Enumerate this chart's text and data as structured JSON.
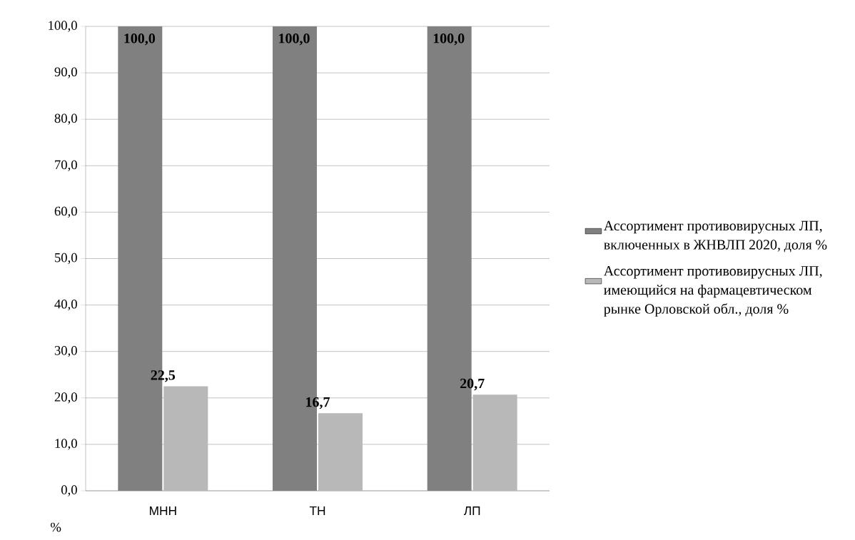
{
  "chart_data": {
    "type": "bar",
    "categories": [
      "МНН",
      "ТН",
      "ЛП"
    ],
    "ylabel": "%",
    "series": [
      {
        "name": "Ассортимент противовирусных ЛП, включенных в ЖНВЛП 2020, доля %",
        "color": "#808080",
        "values": [
          100.0,
          100.0,
          100.0
        ],
        "value_labels": [
          "100,0",
          "100,0",
          "100,0"
        ]
      },
      {
        "name": "Ассортимент противовирусных ЛП, имеющийся на фармацевтическом рынке Орловской обл., доля %",
        "color": "#b8b8b8",
        "values": [
          22.5,
          16.7,
          20.7
        ],
        "value_labels": [
          "22,5",
          "16,7",
          "20,7"
        ]
      }
    ],
    "ylim": [
      0,
      100
    ],
    "yticks": [
      {
        "value": 0,
        "label": "0,0"
      },
      {
        "value": 10,
        "label": "10,0"
      },
      {
        "value": 20,
        "label": "20,0"
      },
      {
        "value": 30,
        "label": "30,0"
      },
      {
        "value": 40,
        "label": "40,0"
      },
      {
        "value": 50,
        "label": "50,0"
      },
      {
        "value": 60,
        "label": "60,0"
      },
      {
        "value": 70,
        "label": "70,0"
      },
      {
        "value": 80,
        "label": "80,0"
      },
      {
        "value": 90,
        "label": "90,0"
      },
      {
        "value": 100,
        "label": "100,0"
      }
    ],
    "grid": "y",
    "legend": "right"
  }
}
